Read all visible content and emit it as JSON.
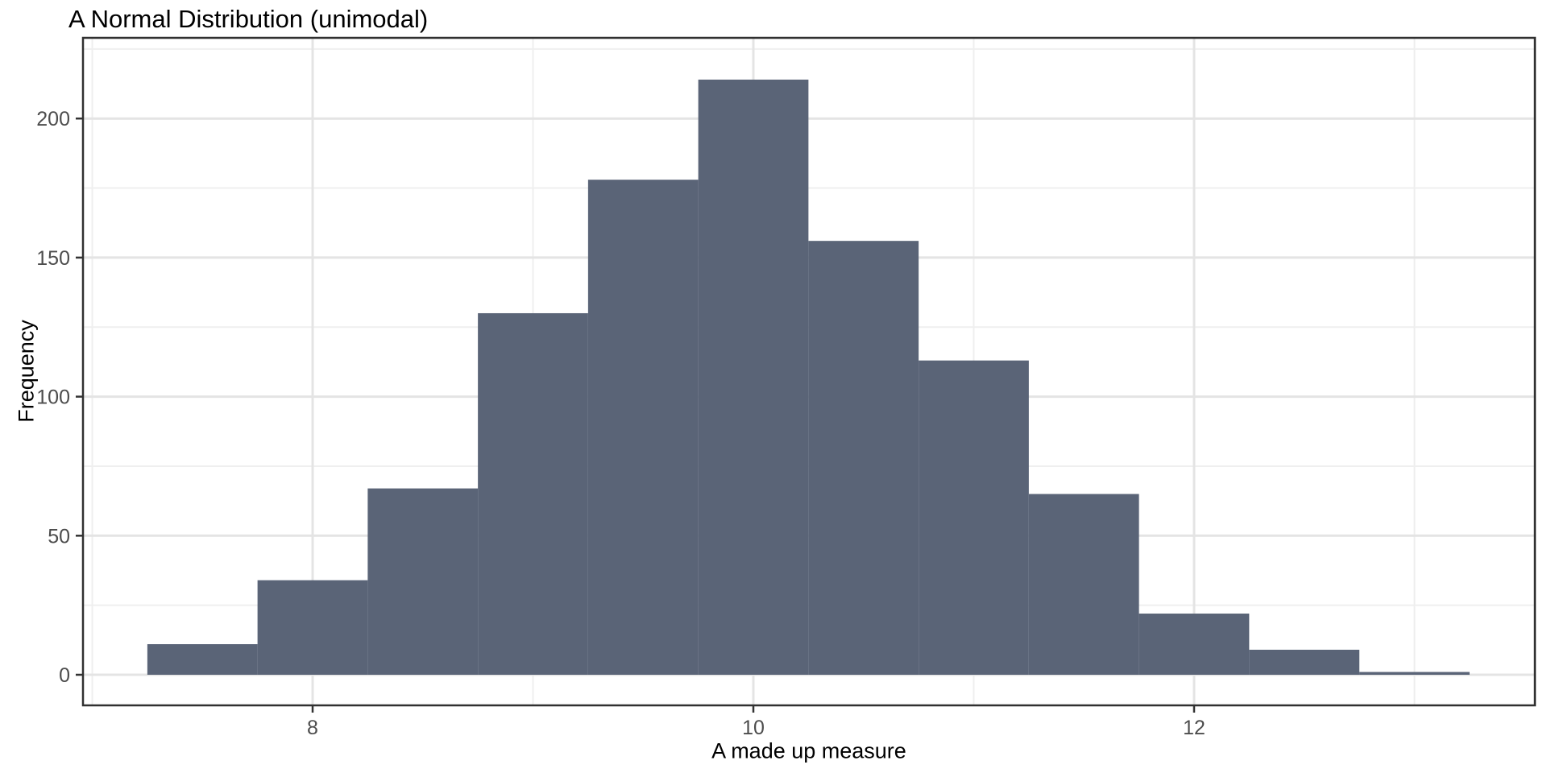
{
  "chart_data": {
    "type": "bar",
    "variant": "histogram",
    "title": "A Normal Distribution (unimodal)",
    "xlabel": "A made up measure",
    "ylabel": "Frequency",
    "bin_width": 0.5,
    "bin_centers": [
      7.5,
      8.0,
      8.5,
      9.0,
      9.5,
      10.0,
      10.5,
      11.0,
      11.5,
      12.0,
      12.5,
      13.0
    ],
    "values": [
      11,
      34,
      67,
      130,
      178,
      214,
      156,
      113,
      65,
      22,
      9,
      1
    ],
    "x_tick_labels": [
      "8",
      "10",
      "12"
    ],
    "x_ticks": [
      8,
      10,
      12
    ],
    "x_minor_gridlines": [
      7,
      9,
      11,
      13
    ],
    "y_tick_labels": [
      "0",
      "50",
      "100",
      "150",
      "200"
    ],
    "y_ticks": [
      0,
      50,
      100,
      150,
      200
    ],
    "y_minor_gridlines": [
      25,
      75,
      125,
      175,
      225
    ],
    "xlim": [
      6.95,
      13.55
    ],
    "ylim": [
      0,
      229
    ],
    "grid": "on",
    "legend_position": "none"
  },
  "colors": {
    "bar_fill": "#5A6477",
    "grid_major": "#E4E4E4",
    "grid_minor": "#EFEFEF",
    "panel_border": "#303030",
    "tick_mark": "#333333",
    "tick_label": "#4D4D4D",
    "text": "#000000",
    "background": "#FFFFFF"
  }
}
